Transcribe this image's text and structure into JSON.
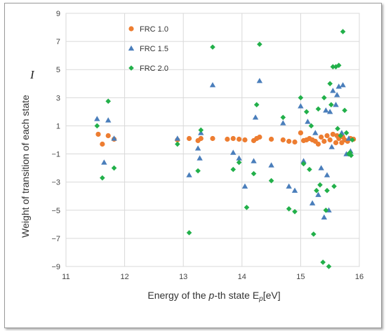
{
  "chart_data": {
    "type": "scatter",
    "title": "",
    "xlabel": {
      "pre": "Energy of the ",
      "italic": "p",
      "mid": "-th state E",
      "sub": "p",
      "post": "[eV]"
    },
    "ylabel": "Weight of transition of each state",
    "annotation": "I",
    "xlim": [
      11,
      16
    ],
    "ylim": [
      -9,
      9
    ],
    "xticks": [
      "11",
      "12",
      "13",
      "14",
      "15",
      "16"
    ],
    "yticks": [
      "9",
      "7",
      "5",
      "3",
      "1",
      "−1",
      "−3",
      "−5",
      "−7",
      "−9"
    ],
    "grid": true,
    "legend_position": "top-left",
    "series": [
      {
        "name": "FRC 1.0",
        "marker": "circle",
        "color": "#ED7D31",
        "points": [
          [
            11.55,
            0.4
          ],
          [
            11.62,
            -0.3
          ],
          [
            11.72,
            0.3
          ],
          [
            11.82,
            0.05
          ],
          [
            12.9,
            0.0
          ],
          [
            13.1,
            0.1
          ],
          [
            13.25,
            -0.05
          ],
          [
            13.3,
            0.1
          ],
          [
            13.5,
            0.1
          ],
          [
            13.75,
            0.05
          ],
          [
            13.85,
            0.1
          ],
          [
            13.95,
            0.05
          ],
          [
            14.05,
            0.0
          ],
          [
            14.2,
            -0.05
          ],
          [
            14.25,
            0.1
          ],
          [
            14.3,
            0.2
          ],
          [
            14.5,
            0.05
          ],
          [
            14.7,
            0.0
          ],
          [
            14.8,
            -0.1
          ],
          [
            14.9,
            -0.15
          ],
          [
            15.0,
            0.5
          ],
          [
            15.05,
            -0.05
          ],
          [
            15.1,
            0.0
          ],
          [
            15.15,
            0.1
          ],
          [
            15.2,
            0.0
          ],
          [
            15.25,
            -0.1
          ],
          [
            15.3,
            -0.3
          ],
          [
            15.35,
            0.2
          ],
          [
            15.4,
            -0.1
          ],
          [
            15.45,
            0.3
          ],
          [
            15.5,
            0.0
          ],
          [
            15.55,
            0.4
          ],
          [
            15.6,
            -0.2
          ],
          [
            15.62,
            0.3
          ],
          [
            15.65,
            0.1
          ],
          [
            15.7,
            -0.2
          ],
          [
            15.72,
            0.2
          ],
          [
            15.75,
            0.0
          ],
          [
            15.8,
            -0.1
          ],
          [
            15.85,
            0.1
          ],
          [
            15.9,
            0.05
          ]
        ]
      },
      {
        "name": "FRC 1.5",
        "marker": "triangle",
        "color": "#4A7EBB",
        "points": [
          [
            11.53,
            1.5
          ],
          [
            11.65,
            -1.6
          ],
          [
            11.72,
            1.4
          ],
          [
            11.82,
            0.1
          ],
          [
            12.9,
            0.1
          ],
          [
            13.1,
            -2.5
          ],
          [
            13.25,
            -0.6
          ],
          [
            13.28,
            -1.3
          ],
          [
            13.3,
            0.5
          ],
          [
            13.5,
            3.9
          ],
          [
            13.85,
            -0.9
          ],
          [
            13.95,
            -1.3
          ],
          [
            14.05,
            -3.3
          ],
          [
            14.2,
            -1.5
          ],
          [
            14.23,
            1.6
          ],
          [
            14.3,
            4.2
          ],
          [
            14.5,
            -1.8
          ],
          [
            14.7,
            1.2
          ],
          [
            14.8,
            -3.3
          ],
          [
            14.9,
            -3.6
          ],
          [
            15.0,
            2.4
          ],
          [
            15.05,
            -1.5
          ],
          [
            15.12,
            1.3
          ],
          [
            15.2,
            -4.5
          ],
          [
            15.25,
            0.5
          ],
          [
            15.3,
            -3.9
          ],
          [
            15.35,
            -2.0
          ],
          [
            15.4,
            -5.5
          ],
          [
            15.43,
            2.1
          ],
          [
            15.45,
            -2.5
          ],
          [
            15.48,
            -5.0
          ],
          [
            15.5,
            2.0
          ],
          [
            15.53,
            -0.5
          ],
          [
            15.55,
            3.5
          ],
          [
            15.6,
            2.5
          ],
          [
            15.62,
            3.2
          ],
          [
            15.65,
            3.8
          ],
          [
            15.7,
            0.5
          ],
          [
            15.72,
            3.9
          ],
          [
            15.78,
            -1.0
          ],
          [
            15.82,
            0.1
          ],
          [
            15.85,
            -0.8
          ]
        ]
      },
      {
        "name": "FRC 2.0",
        "marker": "diamond",
        "color": "#22B04A",
        "points": [
          [
            11.53,
            1.0
          ],
          [
            11.62,
            -2.7
          ],
          [
            11.72,
            2.75
          ],
          [
            11.82,
            -2.0
          ],
          [
            12.9,
            -0.3
          ],
          [
            13.1,
            -6.6
          ],
          [
            13.25,
            -2.2
          ],
          [
            13.3,
            0.7
          ],
          [
            13.5,
            6.6
          ],
          [
            13.85,
            -2.1
          ],
          [
            13.95,
            -1.6
          ],
          [
            14.08,
            -4.8
          ],
          [
            14.2,
            -2.4
          ],
          [
            14.25,
            2.5
          ],
          [
            14.3,
            6.8
          ],
          [
            14.5,
            -2.9
          ],
          [
            14.7,
            1.6
          ],
          [
            14.8,
            -4.9
          ],
          [
            14.9,
            -5.1
          ],
          [
            15.0,
            3.0
          ],
          [
            15.05,
            -1.7
          ],
          [
            15.1,
            2.0
          ],
          [
            15.15,
            -2.1
          ],
          [
            15.18,
            1.0
          ],
          [
            15.22,
            -6.7
          ],
          [
            15.27,
            -3.6
          ],
          [
            15.3,
            2.2
          ],
          [
            15.33,
            -3.2
          ],
          [
            15.38,
            -8.7
          ],
          [
            15.4,
            3.0
          ],
          [
            15.43,
            -5.0
          ],
          [
            15.45,
            -3.6
          ],
          [
            15.48,
            -9.0
          ],
          [
            15.5,
            4.0
          ],
          [
            15.52,
            2.5
          ],
          [
            15.55,
            5.2
          ],
          [
            15.57,
            -3.3
          ],
          [
            15.6,
            5.2
          ],
          [
            15.63,
            0.8
          ],
          [
            15.65,
            5.3
          ],
          [
            15.68,
            0.3
          ],
          [
            15.72,
            7.7
          ],
          [
            15.75,
            2.1
          ],
          [
            15.78,
            0.5
          ],
          [
            15.82,
            -1.0
          ],
          [
            15.84,
            -0.9
          ],
          [
            15.86,
            -1.1
          ],
          [
            15.88,
            0.0
          ]
        ]
      }
    ]
  }
}
